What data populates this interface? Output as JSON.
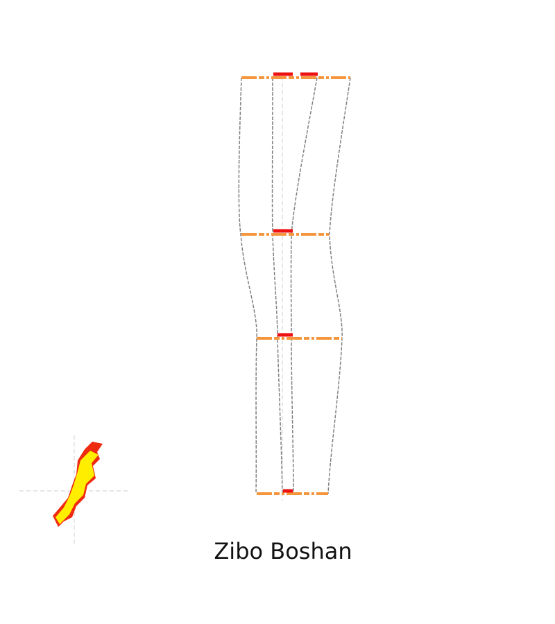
{
  "title": "Zibo Boshan"
}
